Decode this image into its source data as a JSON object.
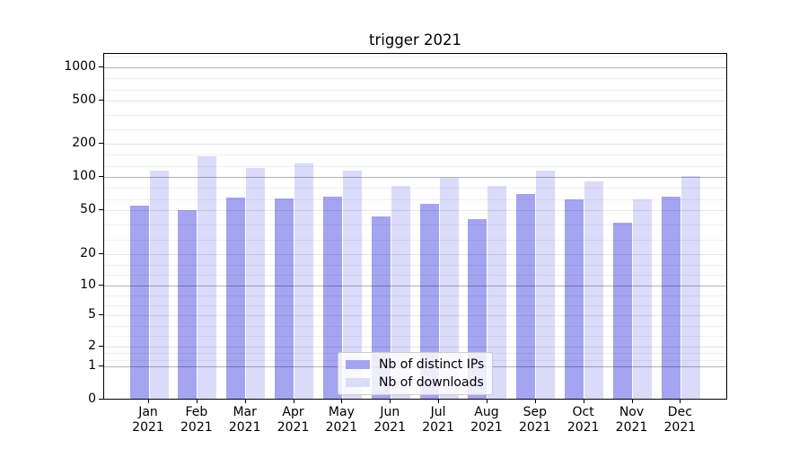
{
  "chart_data": {
    "type": "bar",
    "title": "trigger 2021",
    "categories": [
      "Jan",
      "Feb",
      "Mar",
      "Apr",
      "May",
      "Jun",
      "Jul",
      "Aug",
      "Sep",
      "Oct",
      "Nov",
      "Dec"
    ],
    "year": "2021",
    "series": [
      {
        "name": "Nb of distinct IPs",
        "color": "#a4a4f0",
        "values": [
          53,
          48,
          63,
          62,
          64,
          42,
          55,
          40,
          68,
          60,
          37,
          64
        ]
      },
      {
        "name": "Nb of downloads",
        "color": "#dbdbfa",
        "values": [
          110,
          148,
          116,
          128,
          110,
          80,
          94,
          80,
          110,
          87,
          60,
          98
        ]
      }
    ],
    "yscale": "quasi-log (symlog-like)",
    "yticks": [
      0,
      1,
      2,
      5,
      10,
      20,
      50,
      100,
      200,
      500,
      1000
    ],
    "major_gridline_values": [
      1,
      10,
      100,
      1000
    ],
    "ylim": [
      0,
      1300
    ],
    "grid": true,
    "legend": {
      "labels": [
        "Nb of distinct IPs",
        "Nb of downloads"
      ],
      "position": "lower center"
    }
  }
}
